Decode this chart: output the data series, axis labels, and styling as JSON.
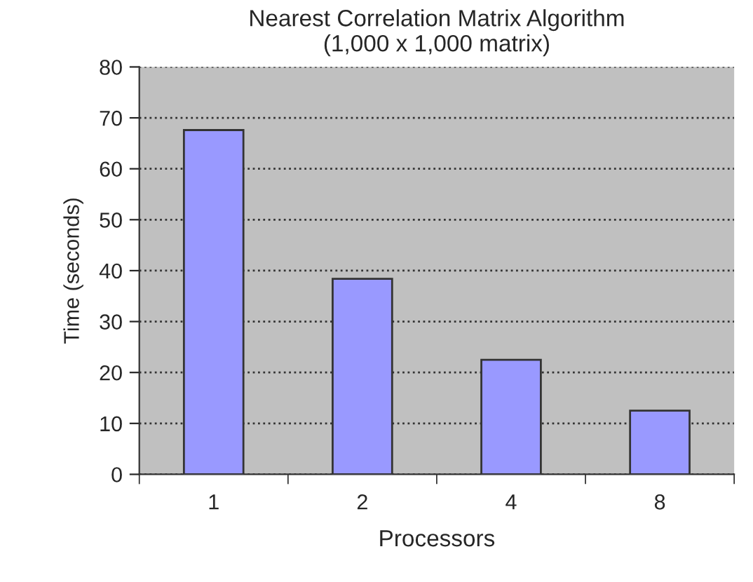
{
  "chart_data": {
    "type": "bar",
    "title": "Nearest Correlation Matrix Algorithm\n(1,000 x 1,000 matrix)",
    "xlabel": "Processors",
    "ylabel": "Time (seconds)",
    "categories": [
      "1",
      "2",
      "4",
      "8"
    ],
    "values": [
      67.6,
      38.4,
      22.5,
      12.5
    ],
    "color": "#9999ff",
    "ylim": [
      0,
      80
    ],
    "yticks": [
      0,
      10,
      20,
      30,
      40,
      50,
      60,
      70,
      80
    ],
    "grid": "y",
    "line_style": "dotted"
  }
}
